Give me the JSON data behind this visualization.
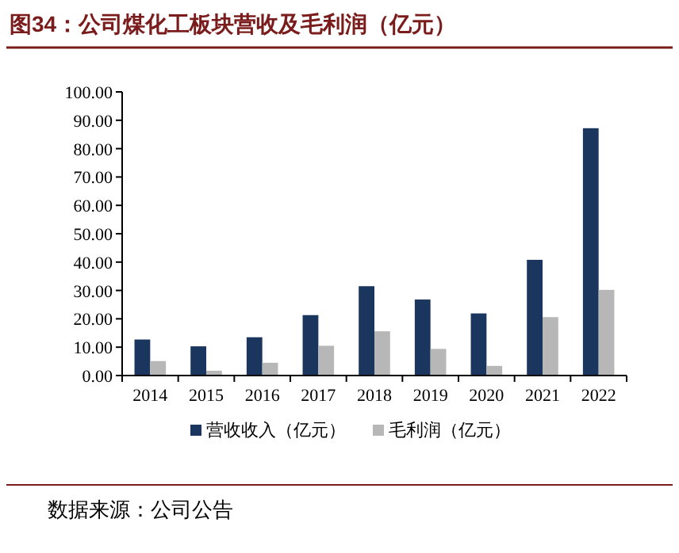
{
  "chart_data": {
    "type": "bar",
    "title": "图34：公司煤化工板块营收及毛利润（亿元）",
    "categories": [
      "2014",
      "2015",
      "2016",
      "2017",
      "2018",
      "2019",
      "2020",
      "2021",
      "2022"
    ],
    "series": [
      {
        "name": "营收收入（亿元）",
        "color": "#1a355e",
        "values": [
          12.7,
          10.3,
          13.5,
          21.3,
          31.5,
          26.8,
          21.9,
          40.8,
          87.2
        ]
      },
      {
        "name": "毛利润（亿元）",
        "color": "#b7b7b7",
        "values": [
          5.1,
          1.7,
          4.5,
          10.5,
          15.6,
          9.4,
          3.4,
          20.6,
          30.2
        ]
      }
    ],
    "ylim": [
      0,
      100
    ],
    "yticks": [
      {
        "value": 0,
        "label": "0.00"
      },
      {
        "value": 10,
        "label": "10.00"
      },
      {
        "value": 20,
        "label": "20.00"
      },
      {
        "value": 30,
        "label": "30.00"
      },
      {
        "value": 40,
        "label": "40.00"
      },
      {
        "value": 50,
        "label": "50.00"
      },
      {
        "value": 60,
        "label": "60.00"
      },
      {
        "value": 70,
        "label": "70.00"
      },
      {
        "value": 80,
        "label": "80.00"
      },
      {
        "value": 90,
        "label": "90.00"
      },
      {
        "value": 100,
        "label": "100.00"
      }
    ],
    "grid": false,
    "legend": "bottom",
    "annotations": [
      "数据来源：公司公告"
    ]
  }
}
